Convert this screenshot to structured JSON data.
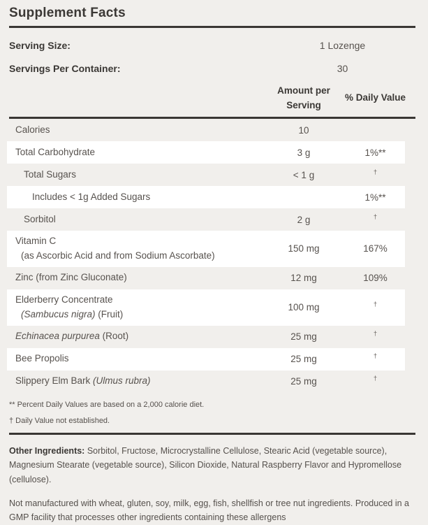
{
  "title": "Supplement Facts",
  "serving_rows": [
    {
      "label": "Serving Size:",
      "value": "1 Lozenge"
    },
    {
      "label": "Servings Per Container:",
      "value": "30"
    }
  ],
  "columns": {
    "amount": "Amount per Serving",
    "daily_value": "% Daily Value"
  },
  "table": {
    "rows": [
      {
        "lines": [
          [
            {
              "text": "Calories"
            }
          ]
        ],
        "amount": "10",
        "dv": "",
        "indent": 0,
        "shade": "beige",
        "dagger": false
      },
      {
        "lines": [
          [
            {
              "text": "Total Carbohydrate"
            }
          ]
        ],
        "amount": "3 g",
        "dv": "1%**",
        "indent": 0,
        "shade": "white",
        "dagger": false
      },
      {
        "lines": [
          [
            {
              "text": "Total Sugars"
            }
          ]
        ],
        "amount": "< 1 g",
        "dv": "†",
        "indent": 1,
        "shade": "beige",
        "dagger": true
      },
      {
        "lines": [
          [
            {
              "text": "Includes < 1g Added Sugars"
            }
          ]
        ],
        "amount": "",
        "dv": "1%**",
        "indent": 2,
        "shade": "white",
        "dagger": false
      },
      {
        "lines": [
          [
            {
              "text": "Sorbitol"
            }
          ]
        ],
        "amount": "2 g",
        "dv": "†",
        "indent": 1,
        "shade": "beige",
        "dagger": true
      },
      {
        "lines": [
          [
            {
              "text": "Vitamin C"
            }
          ],
          [
            {
              "text": "(as Ascorbic Acid and from Sodium Ascorbate)"
            }
          ]
        ],
        "amount": "150 mg",
        "dv": "167%",
        "indent": 0,
        "shade": "white",
        "dagger": false
      },
      {
        "lines": [
          [
            {
              "text": "Zinc (from Zinc Gluconate)"
            }
          ]
        ],
        "amount": "12 mg",
        "dv": "109%",
        "indent": 0,
        "shade": "beige",
        "dagger": false
      },
      {
        "lines": [
          [
            {
              "text": "Elderberry Concentrate"
            }
          ],
          [
            {
              "text": "(Sambucus nigra)",
              "italic": true
            },
            {
              "text": " (Fruit)"
            }
          ]
        ],
        "amount": "100 mg",
        "dv": "†",
        "indent": 0,
        "shade": "white",
        "dagger": true
      },
      {
        "lines": [
          [
            {
              "text": "Echinacea purpurea",
              "italic": true
            },
            {
              "text": " (Root)"
            }
          ]
        ],
        "amount": "25 mg",
        "dv": "†",
        "indent": 0,
        "shade": "beige",
        "dagger": true
      },
      {
        "lines": [
          [
            {
              "text": "Bee Propolis"
            }
          ]
        ],
        "amount": "25 mg",
        "dv": "†",
        "indent": 0,
        "shade": "white",
        "dagger": true
      },
      {
        "lines": [
          [
            {
              "text": "Slippery Elm Bark "
            },
            {
              "text": "(Ulmus rubra)",
              "italic": true
            }
          ]
        ],
        "amount": "25 mg",
        "dv": "†",
        "indent": 0,
        "shade": "beige",
        "dagger": true
      }
    ]
  },
  "footnotes": [
    "** Percent Daily Values are based on a 2,000 calorie diet.",
    "† Daily Value not established."
  ],
  "other_ingredients": {
    "label": "Other Ingredients:",
    "text": "Sorbitol, Fructose, Microcrystalline Cellulose, Stearic Acid (vegetable source), Magnesium Stearate (vegetable source), Silicon Dioxide, Natural Raspberry Flavor and Hypromellose (cellulose)."
  },
  "allergen_note": "Not manufactured with wheat, gluten, soy, milk, egg, fish, shellfish or tree nut ingredients. Produced in a GMP facility that processes other ingredients containing these allergens",
  "colors": {
    "background": "#f1efec",
    "stripe": "#ffffff",
    "heading": "#3b3835",
    "body_text": "#57524e",
    "rule": "#3a3734"
  }
}
